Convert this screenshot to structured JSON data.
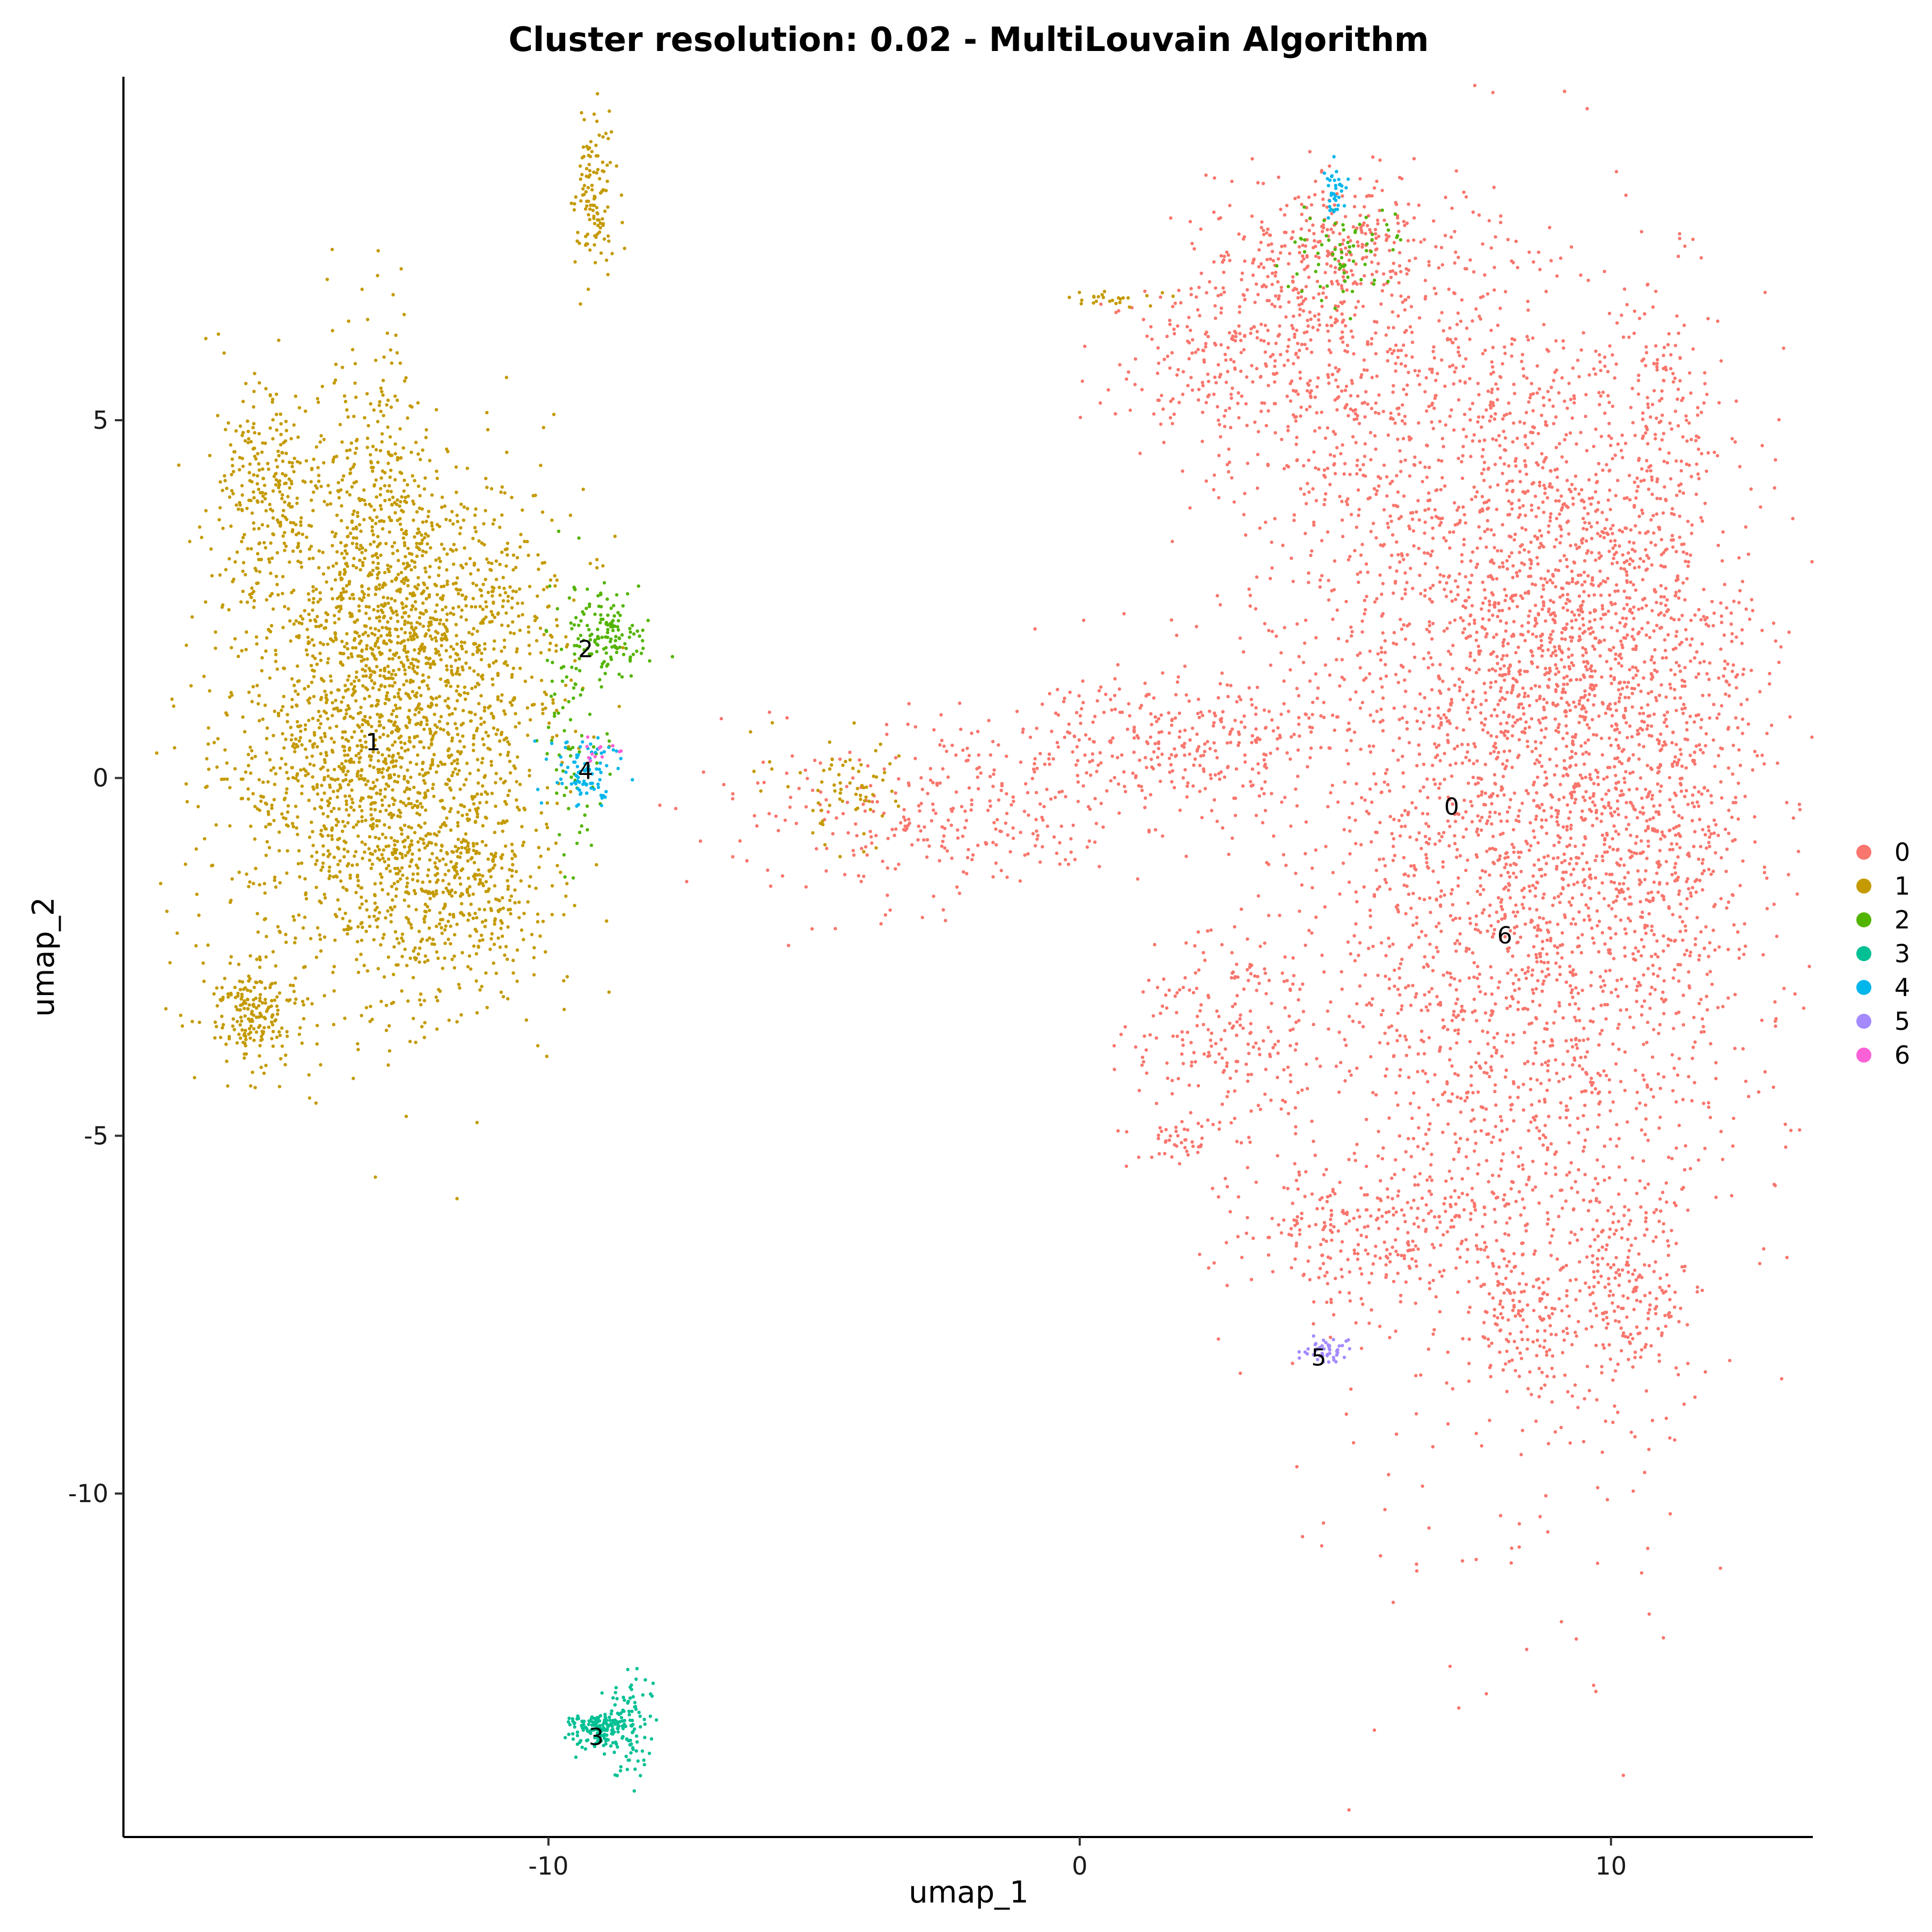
{
  "chart_data": {
    "type": "scatter",
    "title": "Cluster resolution: 0.02 - MultiLouvain Algorithm",
    "xlabel": "umap_1",
    "ylabel": "umap_2",
    "xlim": [
      -18.0,
      13.8
    ],
    "ylim": [
      -14.8,
      9.8
    ],
    "x_ticks": [
      -10,
      0,
      10
    ],
    "x_tick_labels": [
      "-10",
      "0",
      "10"
    ],
    "y_ticks": [
      5,
      0,
      -5,
      -10
    ],
    "y_tick_labels": [
      "5",
      "0",
      "-5",
      "-10"
    ],
    "grid": false,
    "legend_position": "right",
    "series": [
      {
        "name": "0",
        "color": "#F8766D",
        "label_position": [
          7.0,
          -0.4
        ]
      },
      {
        "name": "1",
        "color": "#C49A00",
        "label_position": [
          -13.3,
          0.5
        ]
      },
      {
        "name": "2",
        "color": "#53B400",
        "label_position": [
          -9.3,
          1.8
        ]
      },
      {
        "name": "3",
        "color": "#00C094",
        "label_position": [
          -9.1,
          -13.4
        ]
      },
      {
        "name": "4",
        "color": "#00B6EB",
        "label_position": [
          -9.3,
          0.1
        ]
      },
      {
        "name": "5",
        "color": "#A58AFF",
        "label_position": [
          4.5,
          -8.1
        ]
      },
      {
        "name": "6",
        "color": "#FB61D7",
        "label_position": [
          8.0,
          -2.2
        ]
      }
    ]
  }
}
